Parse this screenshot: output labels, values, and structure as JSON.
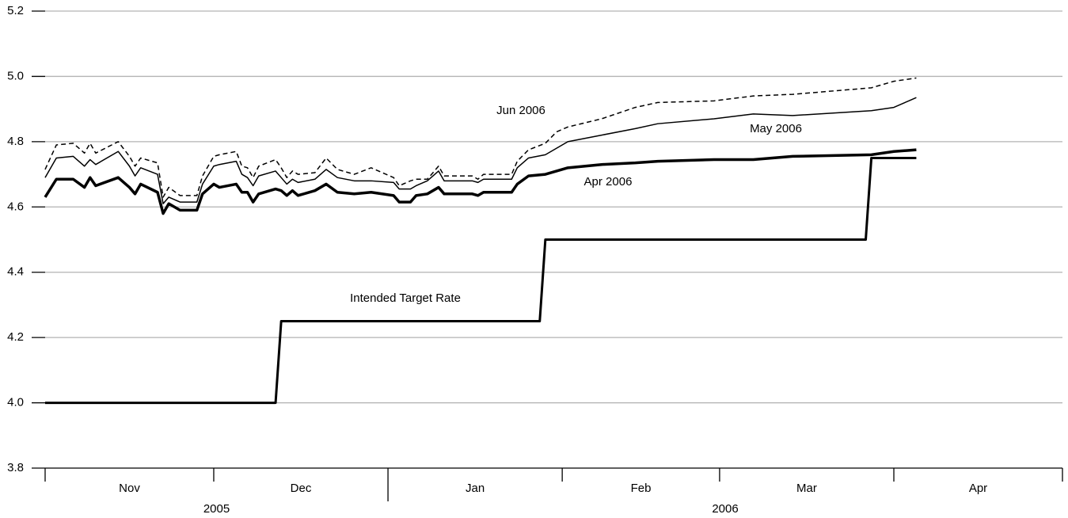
{
  "chart_data": {
    "type": "line",
    "ylim": [
      3.8,
      5.2
    ],
    "yticks": [
      3.8,
      {
        "value": 4,
        "label": "4.0"
      },
      4.2,
      4.4,
      4.6,
      4.8,
      {
        "value": 5,
        "label": "5.0"
      },
      5.2
    ],
    "grid": true,
    "xlim": [
      0,
      181
    ],
    "categories": [
      "Nov",
      "Dec",
      "Jan",
      "Feb",
      "Mar",
      "Apr"
    ],
    "month_bounds": [
      0,
      30,
      61,
      92,
      120,
      151,
      181
    ],
    "year_labels": [
      "2005",
      "2006"
    ],
    "year_bounds": [
      0,
      61,
      181
    ],
    "x": [
      0,
      2,
      5,
      7,
      8,
      9,
      13,
      15,
      16,
      17,
      20,
      21,
      22,
      24,
      27,
      28,
      30,
      31,
      34,
      35,
      36,
      37,
      38,
      41,
      42,
      43,
      44,
      45,
      48,
      50,
      52,
      55,
      58,
      62,
      63,
      65,
      66,
      68,
      70,
      71,
      76,
      77,
      78,
      83,
      84,
      86,
      89,
      91,
      93,
      99,
      105,
      109,
      119,
      126,
      133,
      147,
      151,
      155
    ],
    "series": [
      {
        "name": "Intended Target Rate",
        "color": "#000000",
        "style": "solid",
        "x": [
          0,
          41,
          42,
          88,
          89,
          146,
          147,
          155
        ],
        "values": [
          4,
          4,
          4.25,
          4.25,
          4.5,
          4.5,
          4.75,
          4.75
        ]
      },
      {
        "name": "Apr 2006",
        "color": "#000000",
        "style": "solid",
        "values": [
          4.63,
          4.685,
          4.685,
          4.66,
          4.69,
          4.665,
          4.69,
          4.66,
          4.64,
          4.67,
          4.645,
          4.58,
          4.61,
          4.59,
          4.59,
          4.64,
          4.67,
          4.66,
          4.67,
          4.645,
          4.645,
          4.615,
          4.64,
          4.655,
          4.65,
          4.635,
          4.65,
          4.635,
          4.65,
          4.67,
          4.645,
          4.64,
          4.645,
          4.635,
          4.615,
          4.615,
          4.635,
          4.64,
          4.66,
          4.64,
          4.64,
          4.635,
          4.645,
          4.645,
          4.67,
          4.695,
          4.7,
          4.71,
          4.72,
          4.73,
          4.735,
          4.74,
          4.745,
          4.745,
          4.755,
          4.76,
          4.77,
          4.775
        ]
      },
      {
        "name": "May 2006",
        "color": "#000000",
        "style": "solid",
        "values": [
          4.69,
          4.75,
          4.755,
          4.725,
          4.745,
          4.73,
          4.77,
          4.725,
          4.695,
          4.72,
          4.7,
          4.61,
          4.63,
          4.615,
          4.615,
          4.67,
          4.725,
          4.73,
          4.74,
          4.7,
          4.69,
          4.665,
          4.695,
          4.71,
          4.69,
          4.67,
          4.685,
          4.675,
          4.685,
          4.715,
          4.69,
          4.68,
          4.68,
          4.675,
          4.655,
          4.655,
          4.665,
          4.68,
          4.71,
          4.68,
          4.68,
          4.675,
          4.685,
          4.685,
          4.72,
          4.75,
          4.76,
          4.78,
          4.8,
          4.82,
          4.84,
          4.855,
          4.87,
          4.885,
          4.88,
          4.895,
          4.905,
          4.935
        ]
      },
      {
        "name": "Jun 2006",
        "color": "#000000",
        "style": "dashed",
        "values": [
          4.715,
          4.79,
          4.795,
          4.765,
          4.795,
          4.765,
          4.8,
          4.755,
          4.725,
          4.75,
          4.735,
          4.63,
          4.66,
          4.635,
          4.635,
          4.695,
          4.755,
          4.76,
          4.77,
          4.725,
          4.72,
          4.69,
          4.725,
          4.745,
          4.72,
          4.69,
          4.71,
          4.7,
          4.705,
          4.75,
          4.715,
          4.7,
          4.72,
          4.69,
          4.665,
          4.68,
          4.685,
          4.685,
          4.725,
          4.695,
          4.695,
          4.685,
          4.7,
          4.7,
          4.74,
          4.775,
          4.795,
          4.83,
          4.845,
          4.87,
          4.905,
          4.92,
          4.925,
          4.94,
          4.945,
          4.965,
          4.985,
          4.995
        ]
      }
    ]
  }
}
